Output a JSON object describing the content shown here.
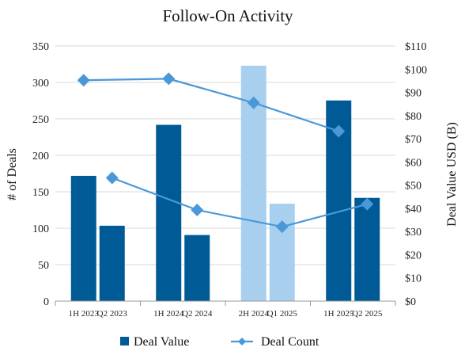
{
  "chart_data": {
    "type": "bar",
    "title": "Follow-On Activity",
    "ylabel_left": "# of Deals",
    "ylabel_right": "Deal Value USD (B)",
    "categories": [
      "1H 2023",
      "Q2 2023",
      "1H 2024",
      "Q2 2024",
      "2H 2024",
      "Q1 2025",
      "1H 2025",
      "Q2 2025"
    ],
    "groups": [
      {
        "categories": [
          "1H 2023",
          "Q2 2023"
        ]
      },
      {
        "categories": [
          "1H 2024",
          "Q2 2024"
        ]
      },
      {
        "categories": [
          "2H 2024",
          "Q1 2025"
        ]
      },
      {
        "categories": [
          "1H 2025",
          "Q2 2025"
        ]
      }
    ],
    "ylim_left": [
      0,
      350
    ],
    "yticks_left": [
      0,
      50,
      100,
      150,
      200,
      250,
      300,
      350
    ],
    "ylim_right": [
      0,
      110
    ],
    "yticks_right": [
      "$0",
      "$10",
      "$20",
      "$30",
      "$40",
      "$50",
      "$60",
      "$70",
      "$80",
      "$90",
      "$100",
      "$110"
    ],
    "grid": true,
    "legend_position": "bottom",
    "series": [
      {
        "name": "Deal Value",
        "type": "bar",
        "axis": "right",
        "values": [
          54,
          32.5,
          76,
          28.5,
          101.5,
          42,
          86.5,
          44.5
        ],
        "colors": [
          "#005a96",
          "#005a96",
          "#005a96",
          "#005a96",
          "#a8cfee",
          "#a8cfee",
          "#005a96",
          "#005a96"
        ]
      },
      {
        "name": "Deal Count",
        "type": "line",
        "axis": "left",
        "color": "#4a98d8",
        "lines": [
          {
            "categories": [
              "1H 2023",
              "1H 2024",
              "2H 2024",
              "1H 2025"
            ],
            "values": [
              303,
              305,
              272,
              233
            ]
          },
          {
            "categories": [
              "Q2 2023",
              "Q2 2024",
              "Q1 2025",
              "Q2 2025"
            ],
            "values": [
              169,
              125,
              102,
              133
            ]
          }
        ]
      }
    ],
    "legend": {
      "items": [
        {
          "label": "Deal Value",
          "color": "#005a96",
          "shape": "square"
        },
        {
          "label": "Deal Count",
          "color": "#4a98d8",
          "shape": "line-diamond"
        }
      ]
    },
    "colors": {
      "grid": "#d9d9d9",
      "axis": "#9a9a9a"
    }
  }
}
